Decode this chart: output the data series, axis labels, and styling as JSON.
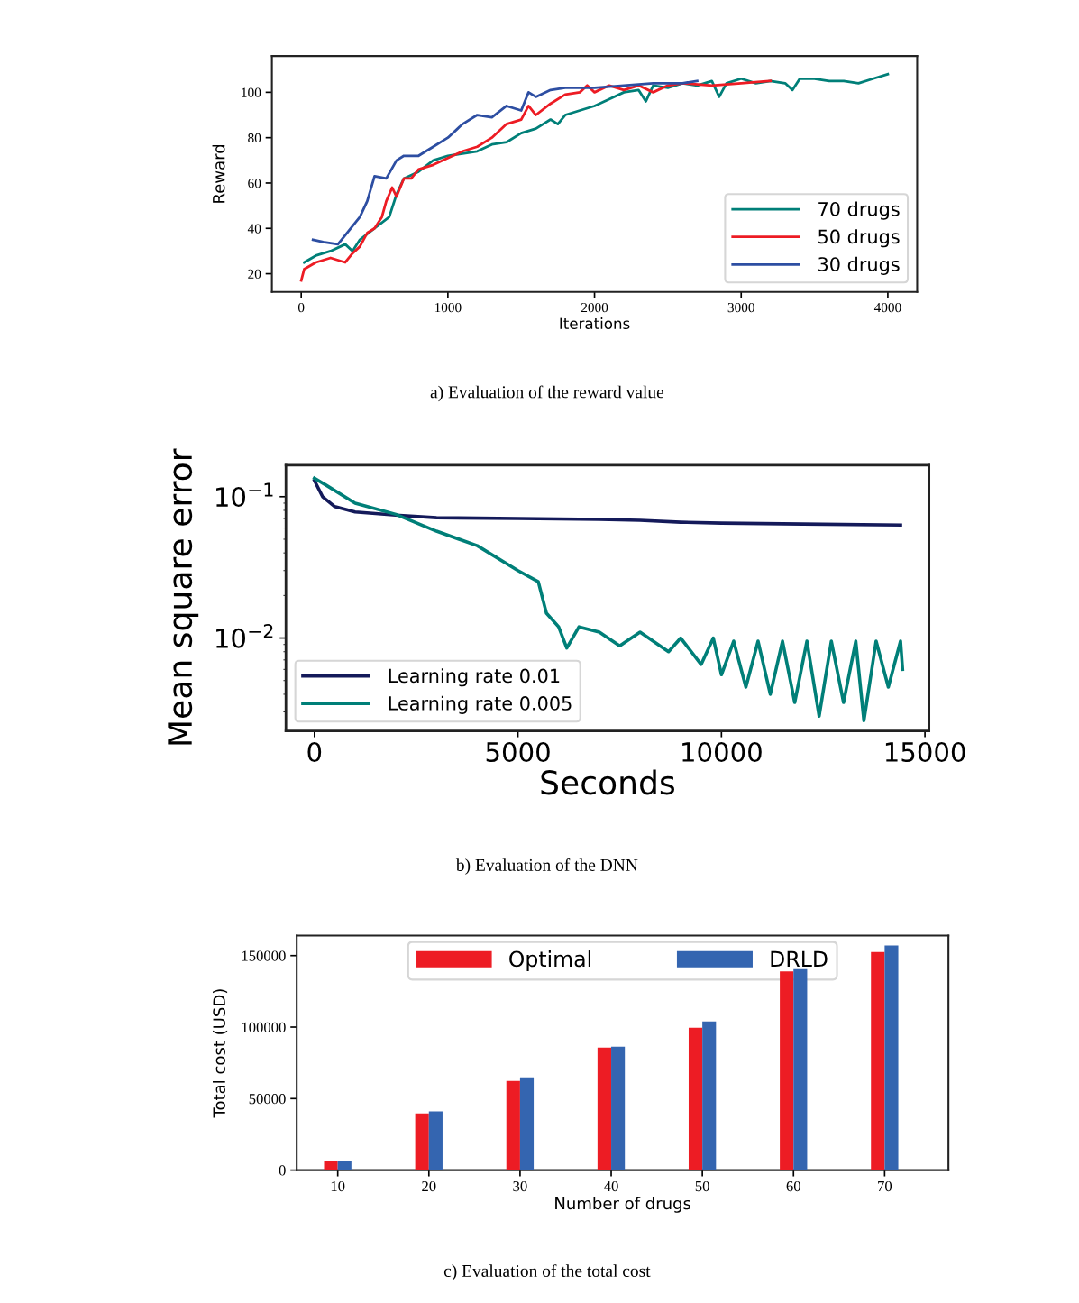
{
  "chart_data": [
    {
      "type": "line",
      "xlabel": "Iterations",
      "ylabel": "Reward",
      "xlim": [
        -200,
        4200
      ],
      "ylim": [
        12,
        116
      ],
      "xticks": [
        0,
        1000,
        2000,
        3000,
        4000
      ],
      "yticks": [
        20,
        40,
        60,
        80,
        100
      ],
      "grid": false,
      "legend": "bottom right",
      "annotations": [
        "a) Evaluation of the reward value"
      ],
      "series": [
        {
          "name": "70 drugs",
          "color": "#007f78",
          "x": [
            20,
            100,
            200,
            300,
            350,
            400,
            500,
            600,
            650,
            700,
            800,
            900,
            1000,
            1100,
            1200,
            1300,
            1400,
            1500,
            1600,
            1700,
            1750,
            1800,
            1900,
            2000,
            2100,
            2200,
            2300,
            2350,
            2400,
            2500,
            2600,
            2700,
            2800,
            2850,
            2900,
            3000,
            3100,
            3200,
            3300,
            3350,
            3400,
            3500,
            3600,
            3700,
            3800,
            3900,
            4000
          ],
          "values": [
            25,
            28,
            30,
            33,
            30,
            35,
            40,
            45,
            55,
            62,
            65,
            70,
            72,
            73,
            74,
            77,
            78,
            82,
            84,
            88,
            86,
            90,
            92,
            94,
            97,
            100,
            101,
            96,
            103,
            102,
            104,
            103,
            105,
            98,
            104,
            106,
            104,
            105,
            104,
            101,
            106,
            106,
            105,
            105,
            104,
            106,
            108
          ]
        },
        {
          "name": "50 drugs",
          "color": "#ed1c24",
          "x": [
            0,
            20,
            100,
            200,
            300,
            350,
            400,
            450,
            500,
            550,
            580,
            620,
            650,
            700,
            750,
            800,
            900,
            1000,
            1100,
            1200,
            1300,
            1400,
            1500,
            1550,
            1600,
            1700,
            1800,
            1900,
            1950,
            2000,
            2100,
            2200,
            2300,
            2400,
            2500,
            2600,
            2800,
            3000,
            3200
          ],
          "values": [
            17,
            22,
            25,
            27,
            25,
            29,
            32,
            38,
            40,
            45,
            52,
            58,
            54,
            62,
            62,
            66,
            68,
            71,
            74,
            76,
            80,
            86,
            88,
            94,
            90,
            95,
            99,
            100,
            103,
            100,
            103,
            101,
            103,
            100,
            103,
            104,
            103,
            104,
            105
          ]
        },
        {
          "name": "30 drugs",
          "color": "#2d4ea2",
          "x": [
            80,
            150,
            250,
            300,
            400,
            450,
            500,
            580,
            650,
            700,
            800,
            900,
            1000,
            1100,
            1200,
            1300,
            1400,
            1500,
            1550,
            1600,
            1700,
            1800,
            1900,
            2000,
            2200,
            2400,
            2500,
            2600,
            2700
          ],
          "values": [
            35,
            34,
            33,
            37,
            45,
            52,
            63,
            62,
            70,
            72,
            72,
            76,
            80,
            86,
            90,
            89,
            94,
            92,
            100,
            98,
            101,
            102,
            102,
            102,
            103,
            104,
            104,
            104,
            105
          ]
        }
      ]
    },
    {
      "type": "line",
      "log": "y",
      "xlabel": "Seconds",
      "ylabel": "Mean square error",
      "xlim": [
        -700,
        15100
      ],
      "ylim": [
        0.0022,
        0.167
      ],
      "xticks": [
        0,
        5000,
        10000,
        15000
      ],
      "yticks": [
        {
          "value": 0.01,
          "label": "10$^{−2}$"
        },
        {
          "value": 0.1,
          "label": "10$^{−1}$"
        }
      ],
      "grid": false,
      "legend": "bottom left",
      "annotations": [
        "b) Evaluation of the DNN"
      ],
      "series": [
        {
          "name": "Learning rate 0.01",
          "color": "#141a5a",
          "x": [
            0,
            200,
            500,
            1000,
            2000,
            3000,
            5000,
            7000,
            8000,
            9000,
            10000,
            12000,
            14400
          ],
          "values": [
            0.13,
            0.1,
            0.085,
            0.078,
            0.074,
            0.071,
            0.07,
            0.069,
            0.068,
            0.066,
            0.065,
            0.064,
            0.063
          ]
        },
        {
          "name": "Learning rate 0.005",
          "color": "#007f78",
          "x": [
            0,
            300,
            1000,
            2000,
            3000,
            4000,
            5000,
            5500,
            5700,
            6000,
            6200,
            6500,
            7000,
            7500,
            8000,
            8700,
            9000,
            9500,
            9800,
            10000,
            10300,
            10600,
            10900,
            11200,
            11500,
            11800,
            12100,
            12400,
            12700,
            13000,
            13300,
            13500,
            13800,
            14100,
            14400,
            14450
          ],
          "values": [
            0.135,
            0.12,
            0.09,
            0.075,
            0.057,
            0.045,
            0.03,
            0.025,
            0.015,
            0.012,
            0.0085,
            0.012,
            0.011,
            0.0088,
            0.011,
            0.008,
            0.01,
            0.0065,
            0.01,
            0.0055,
            0.0095,
            0.0045,
            0.0095,
            0.004,
            0.0095,
            0.0035,
            0.0095,
            0.0028,
            0.0095,
            0.0035,
            0.0095,
            0.0026,
            0.0095,
            0.0045,
            0.0095,
            0.006
          ]
        }
      ]
    },
    {
      "type": "bar",
      "xlabel": "Number of drugs",
      "ylabel": "Total cost (USD)",
      "categories": [
        "10",
        "20",
        "30",
        "40",
        "50",
        "60",
        "70"
      ],
      "ylim": [
        0,
        164000
      ],
      "yticks": [
        0,
        50000,
        100000,
        150000
      ],
      "grid": false,
      "legend": "top",
      "annotations": [
        "c) Evaluation of the total cost"
      ],
      "series": [
        {
          "name": "Optimal",
          "color": "#ed1c24",
          "values": [
            6300,
            39700,
            62400,
            85700,
            99600,
            139000,
            152500
          ]
        },
        {
          "name": "DRLD",
          "color": "#3465b0",
          "values": [
            6300,
            41000,
            64900,
            86300,
            104000,
            140500,
            157000
          ]
        }
      ]
    }
  ]
}
